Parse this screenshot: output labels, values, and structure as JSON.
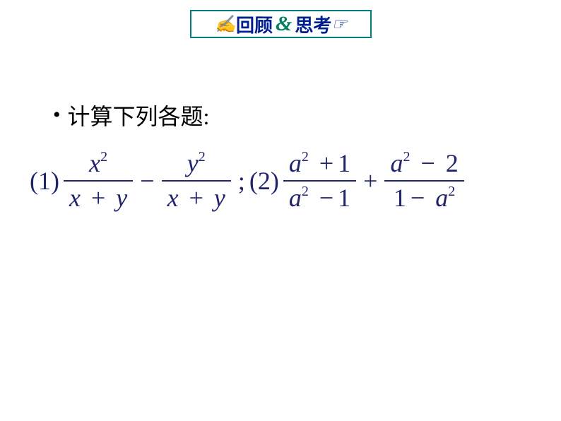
{
  "colors": {
    "title_border": "#008080",
    "title_text": "#002090",
    "title_amp": "#008060",
    "math_color": "#20256b",
    "prompt_color": "#000000"
  },
  "title": {
    "icon_left": "✍",
    "text1": "回顾",
    "amp": "&",
    "text2": "思考",
    "icon_right": "☞"
  },
  "prompt": {
    "bullet": "•",
    "text": "计算下列各题:"
  },
  "math": {
    "label1": "(1)",
    "frac1": {
      "num_var": "x",
      "num_exp": "2",
      "den_a": "x",
      "den_op": "+",
      "den_b": "y"
    },
    "op_minus": "−",
    "frac2": {
      "num_var": "y",
      "num_exp": "2",
      "den_a": "x",
      "den_op": "+",
      "den_b": "y"
    },
    "semicolon": ";",
    "label2": "(2)",
    "frac3": {
      "num_var": "a",
      "num_exp": "2",
      "num_op": "+",
      "num_c": "1",
      "den_var": "a",
      "den_exp": "2",
      "den_op": "−",
      "den_c": "1"
    },
    "op_plus": "+",
    "frac4": {
      "num_var": "a",
      "num_exp": "2",
      "num_op": "−",
      "num_c": "2",
      "den_c": "1",
      "den_op": "−",
      "den_var": "a",
      "den_exp": "2"
    }
  }
}
